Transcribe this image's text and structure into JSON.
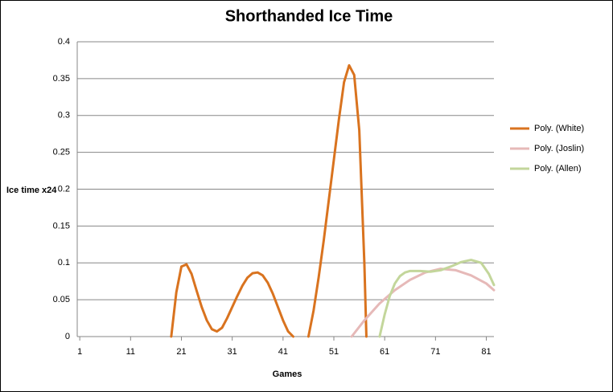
{
  "chart_data": {
    "type": "line",
    "title": "Shorthanded Ice Time",
    "x_label": "Games",
    "y_label": "Ice time x24",
    "xlim": [
      0.5,
      82.5
    ],
    "xticks": [
      1,
      11,
      21,
      31,
      41,
      51,
      61,
      71,
      81
    ],
    "ylim": [
      0,
      0.4
    ],
    "yticks": [
      0,
      0.05,
      0.1,
      0.15,
      0.2,
      0.25,
      0.3,
      0.35,
      0.4
    ],
    "grid": true,
    "legend": "right",
    "series": [
      {
        "name": "Poly. (White)",
        "color": "#d9731f",
        "x": [
          19,
          20,
          21,
          22,
          23,
          24,
          25,
          26,
          27,
          28,
          29,
          30,
          31,
          32,
          33,
          34,
          35,
          36,
          37,
          38,
          39,
          40,
          41,
          42,
          43,
          44,
          46,
          47,
          48,
          49,
          50,
          51,
          52,
          53,
          54,
          55,
          56,
          57,
          57.4
        ],
        "values": [
          0,
          0.06,
          0.095,
          0.098,
          0.085,
          0.062,
          0.04,
          0.022,
          0.01,
          0.007,
          0.012,
          0.025,
          0.04,
          0.055,
          0.069,
          0.08,
          0.086,
          0.087,
          0.083,
          0.073,
          0.058,
          0.04,
          0.022,
          0.007,
          0,
          null,
          0,
          0.035,
          0.08,
          0.13,
          0.185,
          0.24,
          0.295,
          0.345,
          0.368,
          0.355,
          0.28,
          0.1,
          0
        ]
      },
      {
        "name": "Poly. (Joslin)",
        "color": "#e6b9b8",
        "x": [
          54.5,
          57,
          60,
          63,
          66,
          69,
          72,
          75,
          78,
          81,
          82.5
        ],
        "values": [
          0,
          0.022,
          0.045,
          0.063,
          0.077,
          0.087,
          0.092,
          0.09,
          0.083,
          0.072,
          0.063
        ]
      },
      {
        "name": "Poly. (Allen)",
        "color": "#c3d69b",
        "x": [
          60,
          61,
          62,
          63,
          64,
          65,
          66,
          68,
          70,
          72,
          74,
          76,
          78,
          80,
          81.5,
          82.5
        ],
        "values": [
          0,
          0.03,
          0.055,
          0.072,
          0.082,
          0.087,
          0.089,
          0.089,
          0.088,
          0.09,
          0.095,
          0.101,
          0.104,
          0.1,
          0.085,
          0.07
        ]
      }
    ]
  }
}
